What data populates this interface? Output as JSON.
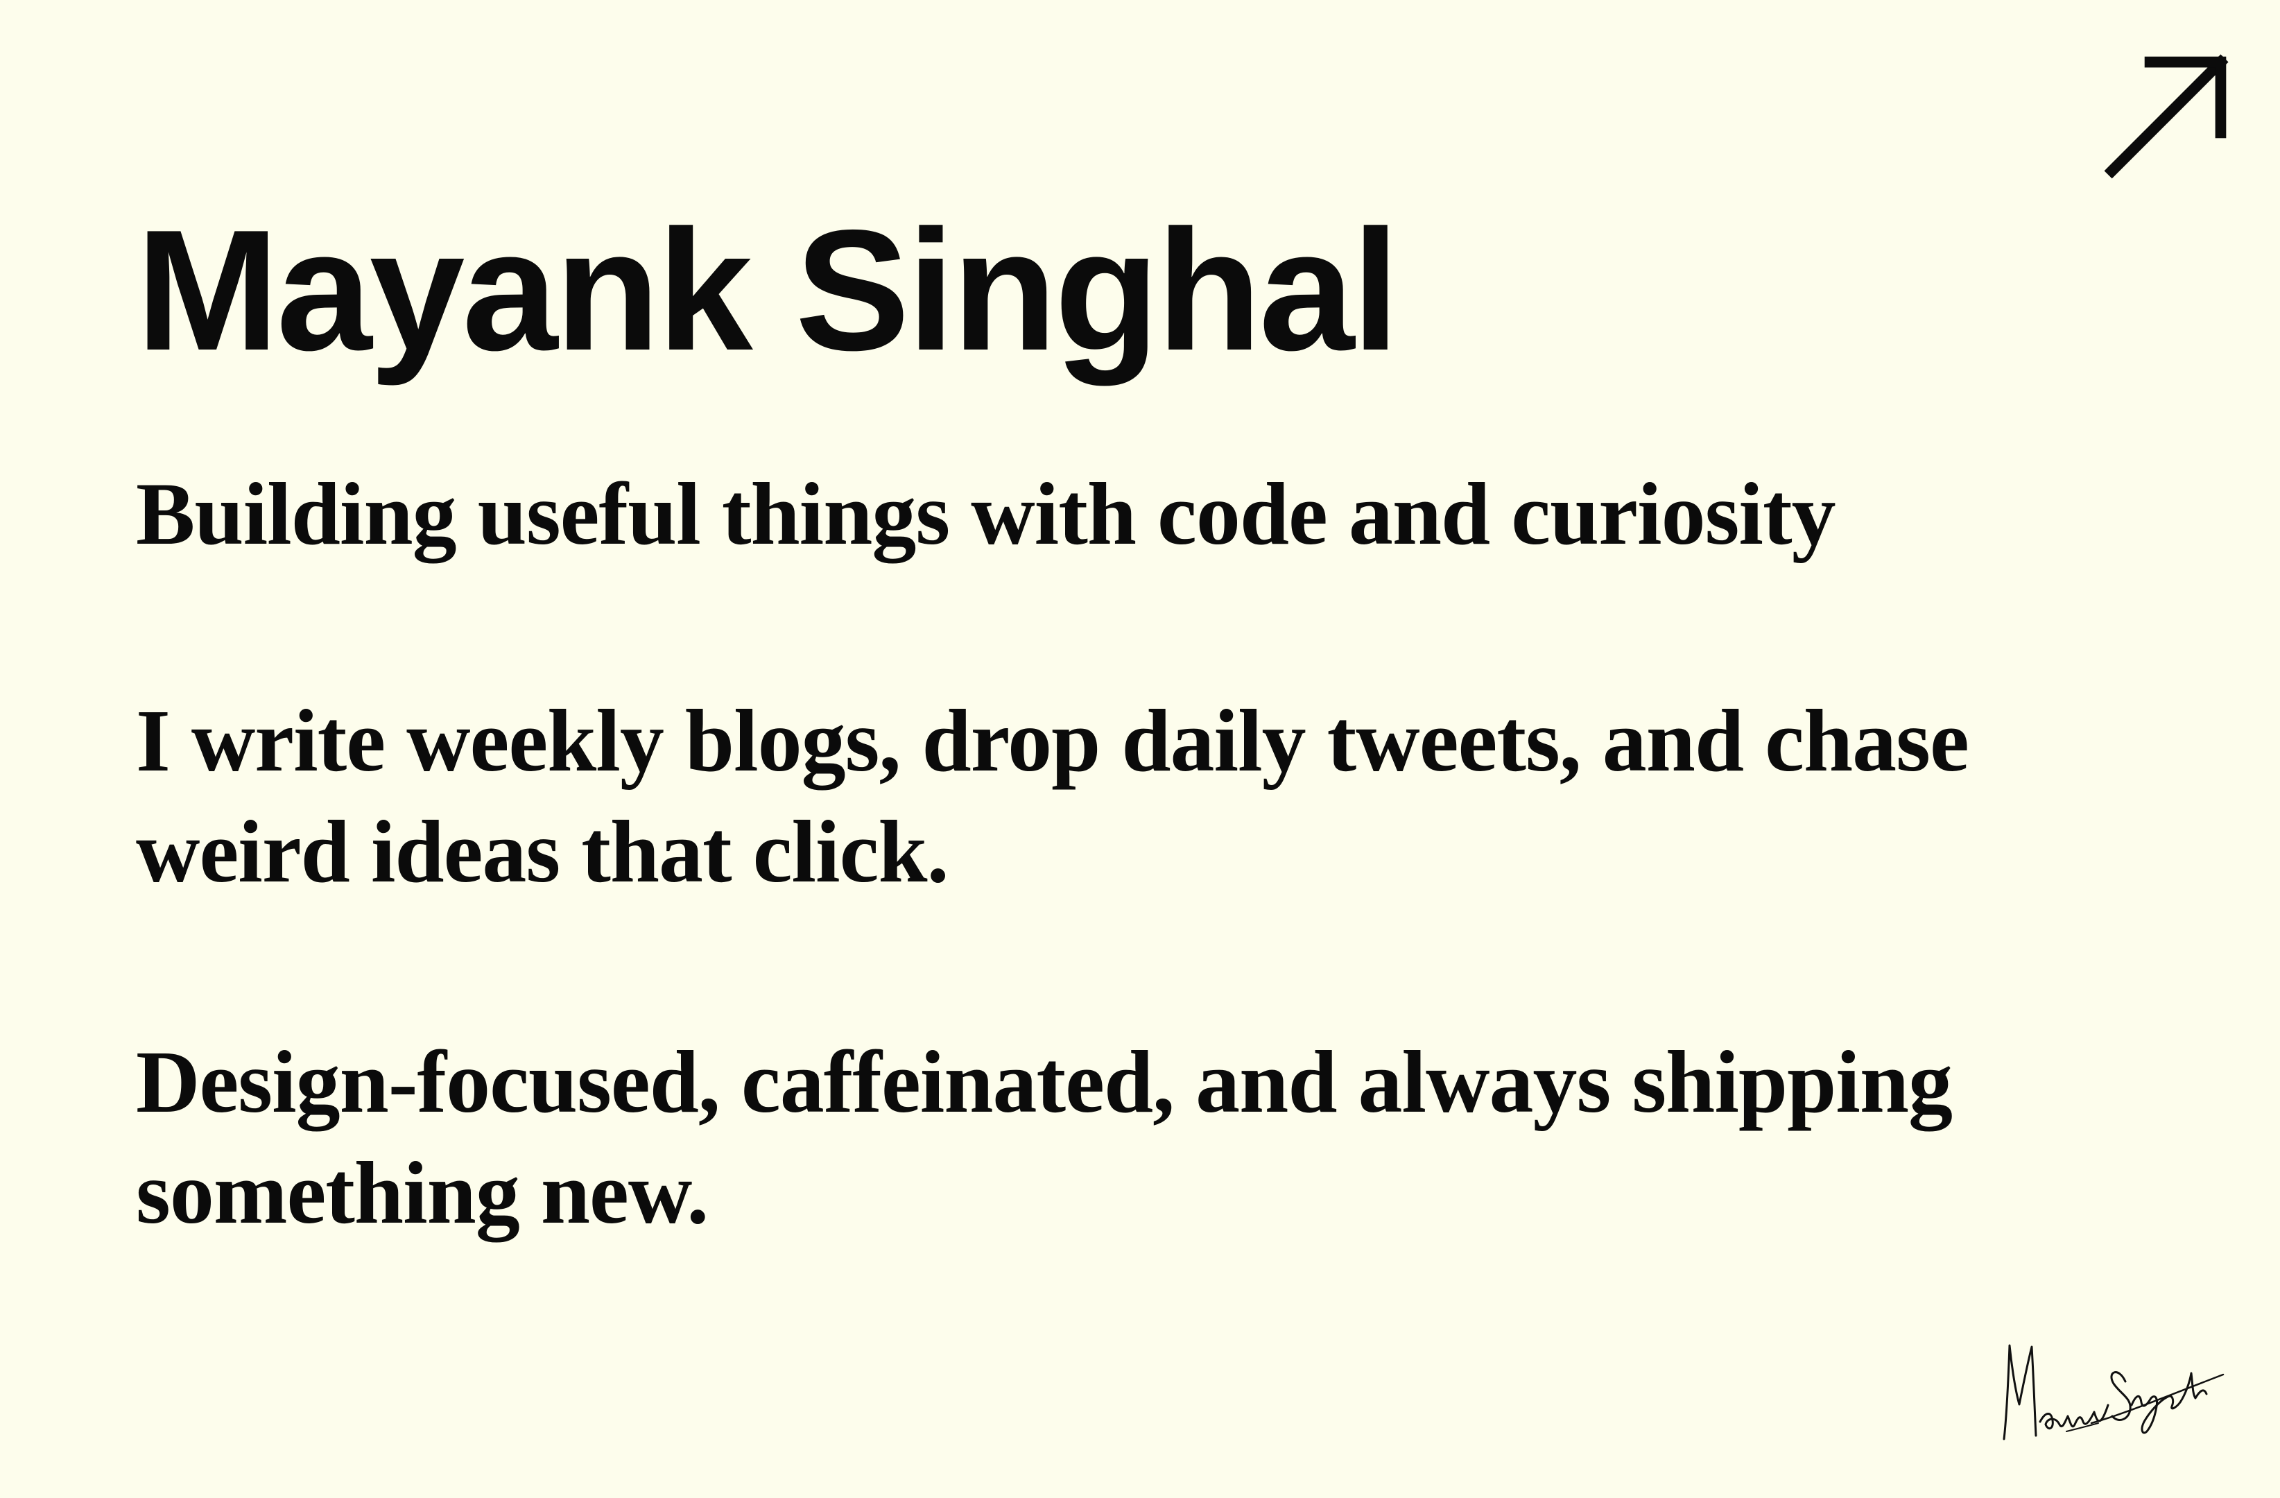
{
  "header": {
    "link_icon": "arrow-up-right-icon"
  },
  "hero": {
    "name": "Mayank Singhal",
    "tagline": "Building useful things with code and curiosity",
    "paragraphs": [
      "I write weekly blogs, drop daily tweets, and chase weird ideas that click.",
      "Design-focused, caffeinated, and always shipping something new."
    ]
  },
  "signature": {
    "text": "Mayank Singhal",
    "icon": "signature-icon"
  },
  "colors": {
    "background": "#fdfdec",
    "text": "#0b0b0b"
  }
}
